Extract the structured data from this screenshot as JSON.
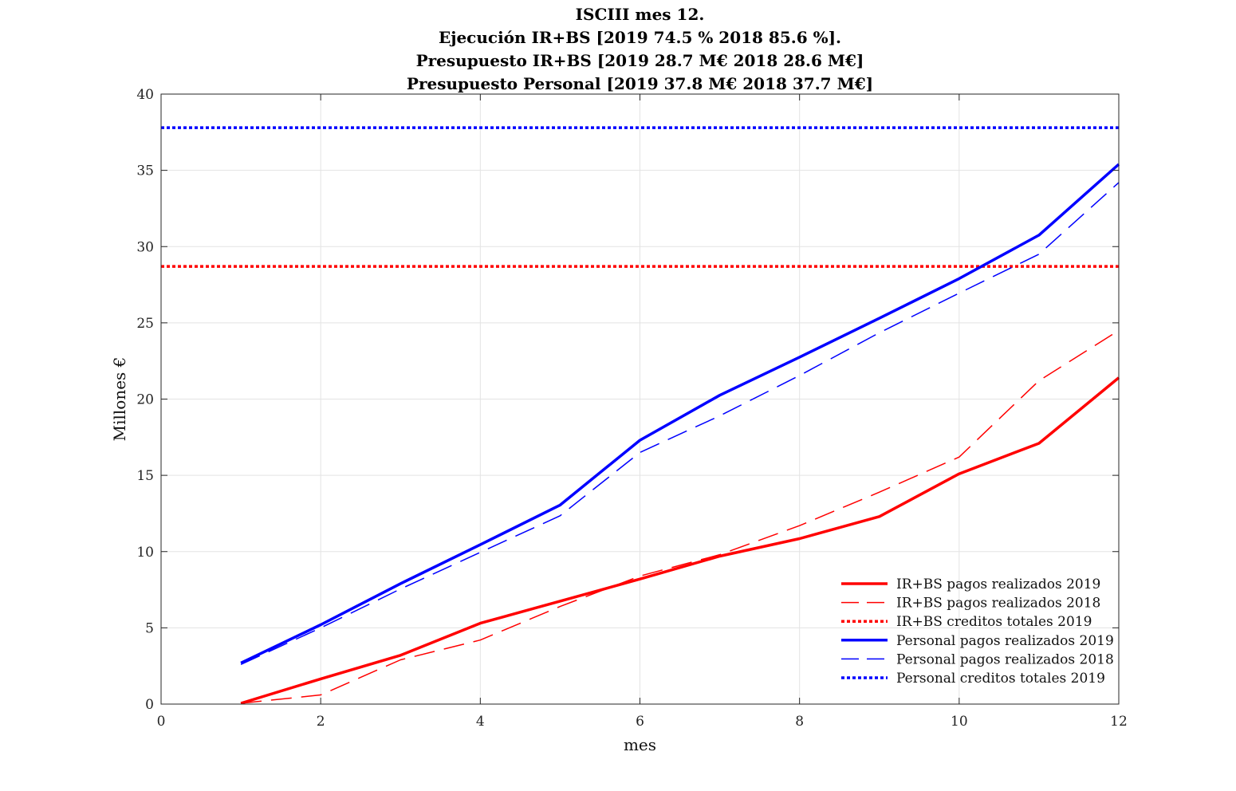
{
  "chart_data": {
    "type": "line",
    "title_lines": [
      "ISCIII mes 12.",
      "Ejecución IR+BS [2019 74.5 % 2018 85.6 %].",
      "Presupuesto IR+BS [2019 28.7 M€ 2018 28.6 M€]",
      "Presupuesto Personal [2019 37.8 M€ 2018 37.7 M€]"
    ],
    "xlabel": "mes",
    "ylabel": "Millones €",
    "xlim": [
      0,
      12
    ],
    "ylim": [
      0,
      40
    ],
    "xticks": [
      0,
      2,
      4,
      6,
      8,
      10,
      12
    ],
    "yticks": [
      0,
      5,
      10,
      15,
      20,
      25,
      30,
      35,
      40
    ],
    "grid": true,
    "legend_position": "bottom-right",
    "series": [
      {
        "name": "IR+BS pagos realizados 2019",
        "color": "#ff0000",
        "style": "solid",
        "width": 3.5,
        "x": [
          1,
          2,
          3,
          4,
          5,
          6,
          7,
          8,
          9,
          10,
          11,
          12
        ],
        "y": [
          0.05,
          1.65,
          3.2,
          5.3,
          6.75,
          8.2,
          9.7,
          10.85,
          12.3,
          15.1,
          17.1,
          21.4
        ]
      },
      {
        "name": "IR+BS pagos realizados 2018",
        "color": "#ff0000",
        "style": "dashed",
        "width": 1.5,
        "x": [
          1,
          2,
          3,
          4,
          5,
          6,
          7,
          8,
          9,
          10,
          11,
          12
        ],
        "y": [
          0.05,
          0.6,
          2.9,
          4.2,
          6.4,
          8.4,
          9.8,
          11.7,
          13.9,
          16.2,
          21.2,
          24.5
        ]
      },
      {
        "name": "IR+BS creditos totales 2019",
        "color": "#ff0000",
        "style": "dotted",
        "width": 3.5,
        "x": [
          0,
          12
        ],
        "y": [
          28.7,
          28.7
        ]
      },
      {
        "name": "Personal pagos realizados 2019",
        "color": "#0000ff",
        "style": "solid",
        "width": 3.5,
        "x": [
          1,
          2,
          3,
          4,
          5,
          6,
          7,
          8,
          9,
          10,
          11,
          12
        ],
        "y": [
          2.7,
          5.2,
          7.9,
          10.45,
          13.05,
          17.3,
          20.25,
          22.75,
          25.3,
          27.9,
          30.75,
          35.4
        ]
      },
      {
        "name": "Personal pagos realizados 2018",
        "color": "#0000ff",
        "style": "dashed",
        "width": 1.5,
        "x": [
          1,
          2,
          3,
          4,
          5,
          6,
          7,
          8,
          9,
          10,
          11,
          12
        ],
        "y": [
          2.6,
          5.0,
          7.55,
          9.95,
          12.35,
          16.5,
          18.9,
          21.55,
          24.35,
          26.95,
          29.5,
          34.2
        ]
      },
      {
        "name": "Personal creditos totales 2019",
        "color": "#0000ff",
        "style": "dotted",
        "width": 3.5,
        "x": [
          0,
          12
        ],
        "y": [
          37.8,
          37.8
        ]
      }
    ]
  }
}
